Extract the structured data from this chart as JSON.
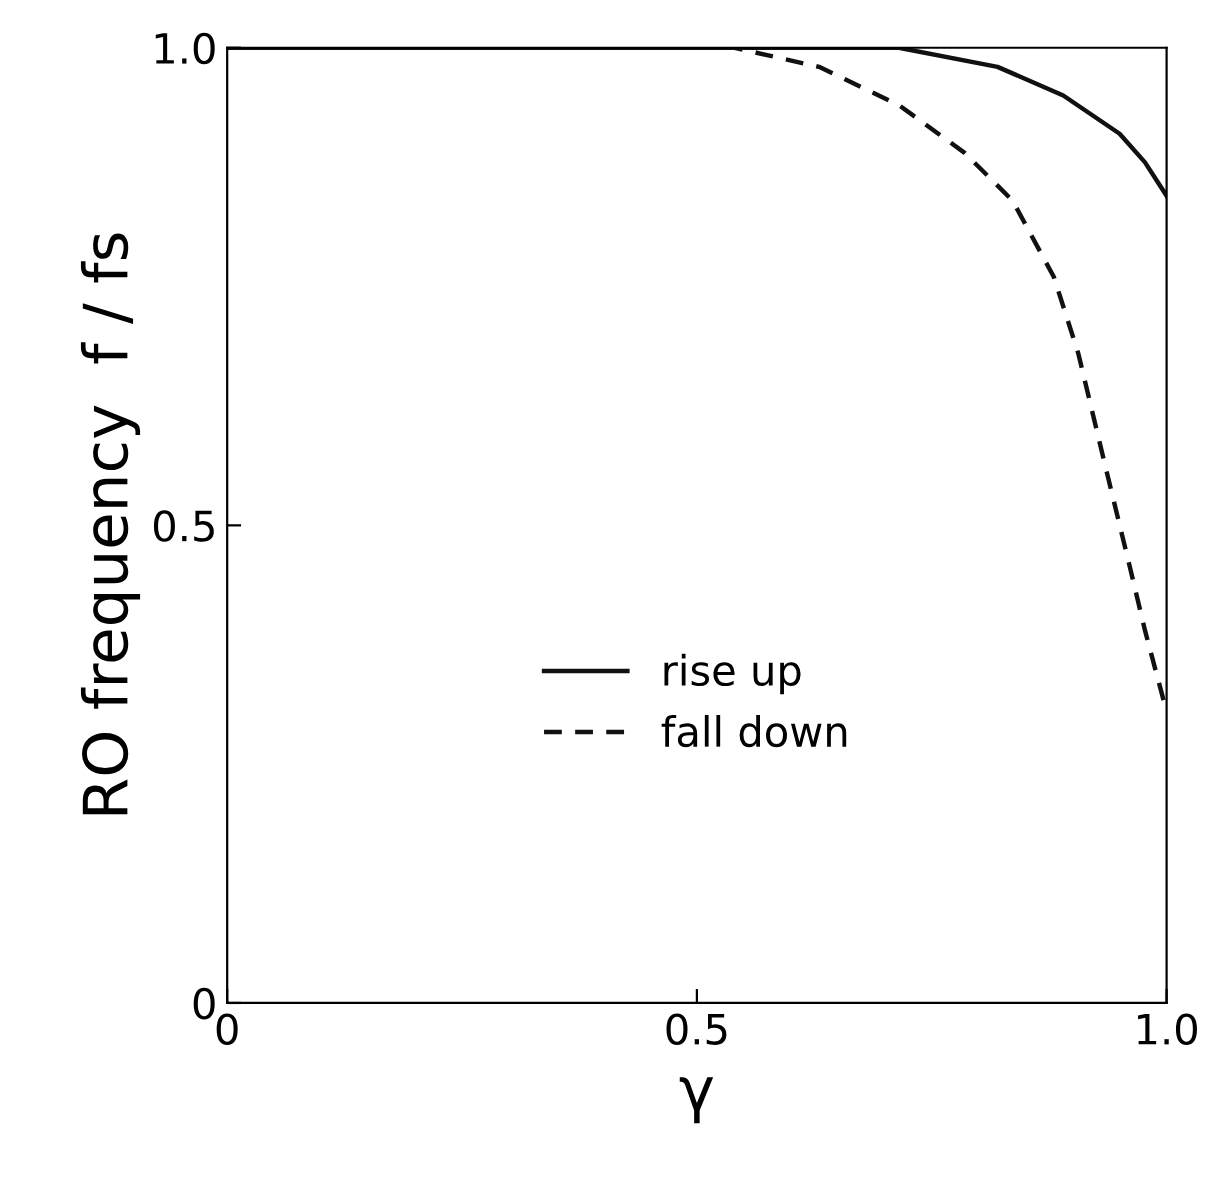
{
  "chart_data": {
    "type": "line",
    "xlabel": "γ",
    "ylabel": "RO frequency  f / fs",
    "xlim": [
      0,
      1.0
    ],
    "ylim": [
      0,
      1.0
    ],
    "xticks": [
      0,
      0.5,
      {
        "value": 1.0,
        "label": "1.0"
      }
    ],
    "yticks": [
      0,
      0.5,
      {
        "value": 1.0,
        "label": "1.0"
      }
    ],
    "grid": false,
    "legend": "bottom",
    "marker": "none",
    "series": [
      {
        "name": "rise up",
        "color": "#111111",
        "line_style": "solid",
        "x": [
          0,
          0.5,
          0.715,
          0.82,
          0.89,
          0.95,
          0.977,
          1.0
        ],
        "values": [
          1.0,
          1.0,
          1.0,
          0.98,
          0.95,
          0.91,
          0.88,
          0.845
        ]
      },
      {
        "name": "fall down",
        "color": "#111111",
        "line_style": "dashed",
        "x": [
          0,
          0.54,
          0.63,
          0.715,
          0.785,
          0.836,
          0.88,
          0.906,
          0.934,
          0.96,
          0.977,
          1.0
        ],
        "values": [
          1.0,
          1.0,
          0.98,
          0.94,
          0.89,
          0.84,
          0.76,
          0.68,
          0.565,
          0.46,
          0.39,
          0.305
        ]
      }
    ]
  }
}
